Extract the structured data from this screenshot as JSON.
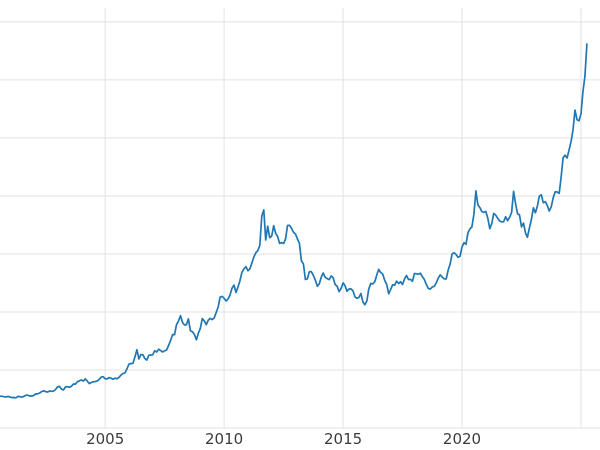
{
  "chart_data": {
    "type": "line",
    "title": "",
    "xlabel": "",
    "ylabel": "",
    "legend": "none",
    "grid": true,
    "background": "#ffffff",
    "line_color": "#1f77b4",
    "grid_color": "#e2e2e2",
    "tick_label_color": "#3b3b3b",
    "x_unit": "year (monthly samples)",
    "x_start": 2000.5833,
    "x_step_years": 0.0833333,
    "xlim": [
      2000.58,
      2025.8
    ],
    "ylim": [
      0,
      3620
    ],
    "y_gridlines": [
      0,
      500,
      1000,
      1500,
      2000,
      2500,
      3000,
      3500
    ],
    "x_ticks": [
      {
        "value": 2005,
        "label": "2005"
      },
      {
        "value": 2010,
        "label": "2010"
      },
      {
        "value": 2015,
        "label": "2015"
      },
      {
        "value": 2020,
        "label": "2020"
      }
    ],
    "x_gridlines_extra": [
      2025
    ],
    "series": [
      {
        "name": "price",
        "values": [
          274,
          273,
          270,
          266,
          272,
          266,
          262,
          263,
          260,
          272,
          270,
          267,
          272,
          283,
          283,
          276,
          276,
          281,
          295,
          294,
          302,
          314,
          321,
          313,
          310,
          319,
          316,
          319,
          332,
          356,
          358,
          334,
          328,
          355,
          356,
          351,
          360,
          379,
          378,
          398,
          407,
          414,
          405,
          423,
          403,
          383,
          392,
          398,
          400,
          405,
          420,
          439,
          442,
          424,
          423,
          434,
          429,
          421,
          430,
          424,
          437,
          456,
          470,
          476,
          510,
          550,
          555,
          557,
          611,
          675,
          596,
          633,
          632,
          599,
          585,
          627,
          629,
          631,
          665,
          655,
          679,
          667,
          655,
          665,
          672,
          712,
          754,
          806,
          803,
          890,
          922,
          968,
          909,
          889,
          889,
          940,
          839,
          829,
          807,
          760,
          816,
          858,
          943,
          924,
          890,
          928,
          945,
          934,
          949,
          996,
          1043,
          1127,
          1134,
          1118,
          1095,
          1113,
          1148,
          1205,
          1232,
          1169,
          1215,
          1271,
          1342,
          1370,
          1391,
          1356,
          1372,
          1424,
          1473,
          1510,
          1529,
          1573,
          1828,
          1880,
          1620,
          1739,
          1640,
          1655,
          1744,
          1676,
          1650,
          1591,
          1598,
          1590,
          1630,
          1745,
          1747,
          1722,
          1688,
          1671,
          1628,
          1593,
          1440,
          1414,
          1280,
          1286,
          1347,
          1348,
          1316,
          1276,
          1221,
          1244,
          1301,
          1336,
          1299,
          1288,
          1279,
          1311,
          1296,
          1237,
          1222,
          1176,
          1202,
          1251,
          1227,
          1178,
          1198,
          1199,
          1182,
          1130,
          1118,
          1125,
          1159,
          1086,
          1062,
          1097,
          1200,
          1246,
          1242,
          1261,
          1320,
          1367,
          1340,
          1327,
          1272,
          1238,
          1157,
          1192,
          1234,
          1231,
          1266,
          1246,
          1260,
          1237,
          1283,
          1314,
          1280,
          1282,
          1264,
          1331,
          1330,
          1325,
          1334,
          1303,
          1281,
          1238,
          1202,
          1198,
          1215,
          1221,
          1250,
          1291,
          1320,
          1301,
          1286,
          1284,
          1359,
          1413,
          1500,
          1511,
          1495,
          1471,
          1479,
          1561,
          1597,
          1583,
          1683,
          1716,
          1732,
          1843,
          2044,
          1922,
          1900,
          1866,
          1858,
          1867,
          1808,
          1718,
          1762,
          1850,
          1835,
          1807,
          1784,
          1777,
          1777,
          1820,
          1787,
          1817,
          1856,
          2040,
          1937,
          1848,
          1837,
          1733,
          1766,
          1681,
          1644,
          1725,
          1797,
          1898,
          1855,
          1913,
          1999,
          2010,
          1942,
          1951,
          1918,
          1870,
          1905,
          1984,
          2036,
          2034,
          2023,
          2160,
          2330,
          2351,
          2327,
          2398,
          2470,
          2568,
          2740,
          2657,
          2648,
          2708,
          2897,
          3030,
          3310
        ]
      }
    ]
  }
}
